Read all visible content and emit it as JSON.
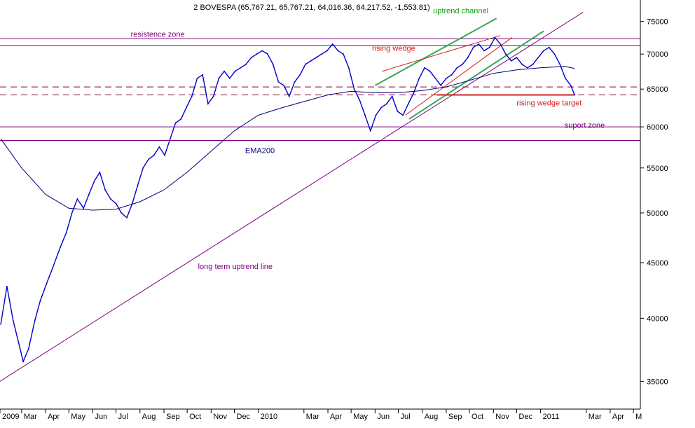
{
  "chart_data": {
    "type": "line",
    "title": "2 BOVESPA (65,767.21, 65,767.21, 64,016.36, 64,217.52, -1,553.81)",
    "ohlc_last": {
      "open": 65767.21,
      "high": 65767.21,
      "low": 64016.36,
      "close": 64217.52,
      "change": -1553.81
    },
    "y_scale": "log",
    "ylim": [
      33000,
      78500
    ],
    "y_ticks": [
      35000,
      40000,
      45000,
      50000,
      55000,
      60000,
      65000,
      70000,
      75000
    ],
    "y_tick_labels": [
      "35000",
      "40000",
      "45000",
      "50000",
      "55000",
      "60000",
      "65000",
      "70000",
      "75000"
    ],
    "x_range": [
      "2009-02-01",
      "2011-05-10"
    ],
    "x_ticks": [
      {
        "date": "2009-02-01",
        "label": "2009"
      },
      {
        "date": "2009-03-01",
        "label": "Mar"
      },
      {
        "date": "2009-04-01",
        "label": "Apr"
      },
      {
        "date": "2009-05-01",
        "label": "May"
      },
      {
        "date": "2009-06-01",
        "label": "Jun"
      },
      {
        "date": "2009-07-01",
        "label": "Jul"
      },
      {
        "date": "2009-08-01",
        "label": "Aug"
      },
      {
        "date": "2009-09-01",
        "label": "Sep"
      },
      {
        "date": "2009-10-01",
        "label": "Oct"
      },
      {
        "date": "2009-11-01",
        "label": "Nov"
      },
      {
        "date": "2009-12-01",
        "label": "Dec"
      },
      {
        "date": "2010-01-01",
        "label": "2010"
      },
      {
        "date": "2010-03-01",
        "label": "Mar"
      },
      {
        "date": "2010-04-01",
        "label": "Apr"
      },
      {
        "date": "2010-05-01",
        "label": "May"
      },
      {
        "date": "2010-06-01",
        "label": "Jun"
      },
      {
        "date": "2010-07-01",
        "label": "Jul"
      },
      {
        "date": "2010-08-01",
        "label": "Aug"
      },
      {
        "date": "2010-09-01",
        "label": "Sep"
      },
      {
        "date": "2010-10-01",
        "label": "Oct"
      },
      {
        "date": "2010-11-01",
        "label": "Nov"
      },
      {
        "date": "2010-12-01",
        "label": "Dec"
      },
      {
        "date": "2011-01-01",
        "label": "2011"
      },
      {
        "date": "2011-03-01",
        "label": "Mar"
      },
      {
        "date": "2011-04-01",
        "label": "Apr"
      },
      {
        "date": "2011-05-01",
        "label": "M"
      }
    ],
    "series": [
      {
        "name": "",
        "color": "#0000cc",
        "points": [
          [
            "2009-02-02",
            39500
          ],
          [
            "2009-02-10",
            42800
          ],
          [
            "2009-02-18",
            39800
          ],
          [
            "2009-02-25",
            38000
          ],
          [
            "2009-03-03",
            36500
          ],
          [
            "2009-03-10",
            37500
          ],
          [
            "2009-03-18",
            39800
          ],
          [
            "2009-03-25",
            41500
          ],
          [
            "2009-04-02",
            43000
          ],
          [
            "2009-04-10",
            44500
          ],
          [
            "2009-04-20",
            46500
          ],
          [
            "2009-04-28",
            48000
          ],
          [
            "2009-05-05",
            50000
          ],
          [
            "2009-05-12",
            51500
          ],
          [
            "2009-05-20",
            50500
          ],
          [
            "2009-05-27",
            52000
          ],
          [
            "2009-06-03",
            53500
          ],
          [
            "2009-06-10",
            54500
          ],
          [
            "2009-06-17",
            52500
          ],
          [
            "2009-06-24",
            51500
          ],
          [
            "2009-07-01",
            51000
          ],
          [
            "2009-07-08",
            50000
          ],
          [
            "2009-07-15",
            49500
          ],
          [
            "2009-07-22",
            51000
          ],
          [
            "2009-07-29",
            53000
          ],
          [
            "2009-08-05",
            55000
          ],
          [
            "2009-08-12",
            56000
          ],
          [
            "2009-08-19",
            56500
          ],
          [
            "2009-08-26",
            57500
          ],
          [
            "2009-09-02",
            56500
          ],
          [
            "2009-09-09",
            58500
          ],
          [
            "2009-09-16",
            60500
          ],
          [
            "2009-09-23",
            61000
          ],
          [
            "2009-09-30",
            62500
          ],
          [
            "2009-10-07",
            64000
          ],
          [
            "2009-10-14",
            66500
          ],
          [
            "2009-10-21",
            67000
          ],
          [
            "2009-10-28",
            63000
          ],
          [
            "2009-11-04",
            64000
          ],
          [
            "2009-11-11",
            66500
          ],
          [
            "2009-11-18",
            67500
          ],
          [
            "2009-11-25",
            66500
          ],
          [
            "2009-12-02",
            67500
          ],
          [
            "2009-12-09",
            68000
          ],
          [
            "2009-12-16",
            68500
          ],
          [
            "2009-12-23",
            69500
          ],
          [
            "2009-12-30",
            70000
          ],
          [
            "2010-01-06",
            70500
          ],
          [
            "2010-01-13",
            70000
          ],
          [
            "2010-01-20",
            68500
          ],
          [
            "2010-01-27",
            66000
          ],
          [
            "2010-02-03",
            65500
          ],
          [
            "2010-02-10",
            64000
          ],
          [
            "2010-02-17",
            66000
          ],
          [
            "2010-02-24",
            67000
          ],
          [
            "2010-03-03",
            68500
          ],
          [
            "2010-03-10",
            69000
          ],
          [
            "2010-03-17",
            69500
          ],
          [
            "2010-03-24",
            70000
          ],
          [
            "2010-03-31",
            70500
          ],
          [
            "2010-04-07",
            71500
          ],
          [
            "2010-04-14",
            70500
          ],
          [
            "2010-04-21",
            70000
          ],
          [
            "2010-04-28",
            68000
          ],
          [
            "2010-05-05",
            65000
          ],
          [
            "2010-05-12",
            63500
          ],
          [
            "2010-05-19",
            61500
          ],
          [
            "2010-05-26",
            59500
          ],
          [
            "2010-06-02",
            61500
          ],
          [
            "2010-06-09",
            62500
          ],
          [
            "2010-06-16",
            63000
          ],
          [
            "2010-06-23",
            64000
          ],
          [
            "2010-06-30",
            62000
          ],
          [
            "2010-07-07",
            61500
          ],
          [
            "2010-07-14",
            63000
          ],
          [
            "2010-07-21",
            64500
          ],
          [
            "2010-07-28",
            66500
          ],
          [
            "2010-08-04",
            68000
          ],
          [
            "2010-08-11",
            67500
          ],
          [
            "2010-08-18",
            66500
          ],
          [
            "2010-08-25",
            65500
          ],
          [
            "2010-09-01",
            66500
          ],
          [
            "2010-09-08",
            67000
          ],
          [
            "2010-09-15",
            68000
          ],
          [
            "2010-09-22",
            68500
          ],
          [
            "2010-09-29",
            69500
          ],
          [
            "2010-10-06",
            71000
          ],
          [
            "2010-10-13",
            71500
          ],
          [
            "2010-10-20",
            70500
          ],
          [
            "2010-10-27",
            71000
          ],
          [
            "2010-11-03",
            72500
          ],
          [
            "2010-11-10",
            71500
          ],
          [
            "2010-11-17",
            70000
          ],
          [
            "2010-11-24",
            69000
          ],
          [
            "2010-12-01",
            69500
          ],
          [
            "2010-12-08",
            68500
          ],
          [
            "2010-12-15",
            68000
          ],
          [
            "2010-12-22",
            68500
          ],
          [
            "2010-12-29",
            69500
          ],
          [
            "2011-01-05",
            70500
          ],
          [
            "2011-01-12",
            71000
          ],
          [
            "2011-01-19",
            70000
          ],
          [
            "2011-01-26",
            68500
          ],
          [
            "2011-02-02",
            66500
          ],
          [
            "2011-02-09",
            65500
          ],
          [
            "2011-02-14",
            64200
          ]
        ]
      },
      {
        "name": "EMA200",
        "color": "#00007a",
        "points": [
          [
            "2009-02-02",
            58500
          ],
          [
            "2009-03-01",
            55000
          ],
          [
            "2009-04-01",
            52000
          ],
          [
            "2009-05-01",
            50500
          ],
          [
            "2009-06-01",
            50300
          ],
          [
            "2009-07-01",
            50400
          ],
          [
            "2009-08-01",
            51200
          ],
          [
            "2009-09-01",
            52500
          ],
          [
            "2009-10-01",
            54500
          ],
          [
            "2009-11-01",
            57000
          ],
          [
            "2009-12-01",
            59500
          ],
          [
            "2010-01-01",
            61500
          ],
          [
            "2010-02-01",
            62500
          ],
          [
            "2010-03-01",
            63300
          ],
          [
            "2010-04-01",
            64200
          ],
          [
            "2010-05-01",
            64700
          ],
          [
            "2010-06-01",
            64500
          ],
          [
            "2010-07-01",
            64500
          ],
          [
            "2010-08-01",
            64800
          ],
          [
            "2010-09-01",
            65300
          ],
          [
            "2010-10-01",
            66200
          ],
          [
            "2010-11-01",
            67200
          ],
          [
            "2010-12-01",
            67700
          ],
          [
            "2011-01-01",
            68000
          ],
          [
            "2011-02-01",
            68200
          ],
          [
            "2011-02-14",
            67900
          ]
        ]
      }
    ],
    "hlines": [
      {
        "name": "resistence-zone-upper",
        "y": 72300,
        "color": "#800080",
        "style": "solid"
      },
      {
        "name": "resistence-zone-lower",
        "y": 71300,
        "color": "#800080",
        "style": "solid"
      },
      {
        "name": "wedge-target-upper",
        "y": 65300,
        "color": "#800020",
        "style": "dashed"
      },
      {
        "name": "wedge-target-lower",
        "y": 64200,
        "color": "#800020",
        "style": "dashed"
      },
      {
        "name": "suport-zone-upper",
        "y": 60000,
        "color": "#800080",
        "style": "solid"
      },
      {
        "name": "suport-zone-lower",
        "y": 58300,
        "color": "#800080",
        "style": "solid"
      }
    ],
    "trendlines": [
      {
        "name": "long-term-uptrend-line",
        "color": "#800080",
        "width": 1,
        "points": [
          [
            "2009-02-01",
            35000
          ],
          [
            "2011-02-25",
            76500
          ]
        ]
      },
      {
        "name": "uptrend-channel-upper",
        "color": "#33aa55",
        "width": 2,
        "points": [
          [
            "2010-06-01",
            65500
          ],
          [
            "2010-11-05",
            75500
          ]
        ]
      },
      {
        "name": "uptrend-channel-lower",
        "color": "#33aa55",
        "width": 2,
        "points": [
          [
            "2010-07-15",
            61000
          ],
          [
            "2011-01-05",
            73500
          ]
        ]
      },
      {
        "name": "rising-wedge-upper",
        "color": "#cc2222",
        "width": 1,
        "points": [
          [
            "2010-06-10",
            67500
          ],
          [
            "2010-11-10",
            72800
          ]
        ]
      },
      {
        "name": "rising-wedge-lower",
        "color": "#cc2222",
        "width": 1,
        "points": [
          [
            "2010-07-10",
            61500
          ],
          [
            "2010-11-25",
            72500
          ]
        ]
      },
      {
        "name": "wedge-target-line",
        "color": "#cc2222",
        "width": 2,
        "points": [
          [
            "2010-08-20",
            64200
          ],
          [
            "2011-02-14",
            64200
          ]
        ]
      }
    ],
    "annotations": [
      {
        "text": "resistence zone",
        "color": "#800080",
        "anchor": [
          "2009-07-20",
          72300
        ]
      },
      {
        "text": "uptrend channel",
        "color": "#119911",
        "anchor": [
          "2010-08-15",
          76000
        ]
      },
      {
        "text": "rising wedge",
        "color": "#cc2222",
        "anchor": [
          "2010-05-28",
          70200
        ]
      },
      {
        "text": "rising wedge target",
        "color": "#cc2222",
        "anchor": [
          "2010-12-01",
          62500
        ]
      },
      {
        "text": "suport zone",
        "color": "#800080",
        "anchor": [
          "2011-02-01",
          59600
        ]
      },
      {
        "text": "EMA200",
        "color": "#00007a",
        "anchor": [
          "2009-12-15",
          56500
        ]
      },
      {
        "text": "long term uptrend line",
        "color": "#800080",
        "anchor": [
          "2009-10-15",
          44200
        ]
      }
    ],
    "grid": false,
    "legend": "none"
  }
}
